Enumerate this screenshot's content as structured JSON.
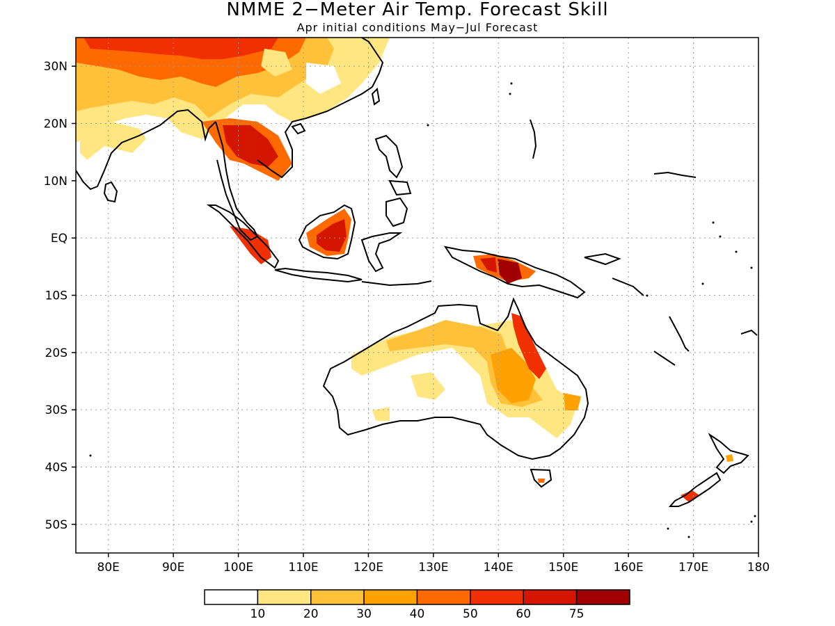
{
  "header": {
    "title": "NMME 2−Meter Air Temp. Forecast Skill",
    "subtitle": "Apr initial conditions  May−Jul Forecast"
  },
  "axes": {
    "lon_ticks": [
      "80E",
      "90E",
      "100E",
      "110E",
      "120E",
      "130E",
      "140E",
      "150E",
      "160E",
      "170E",
      "180"
    ],
    "lat_ticks": [
      "30N",
      "20N",
      "10N",
      "EQ",
      "10S",
      "20S",
      "30S",
      "40S",
      "50S"
    ]
  },
  "colorbar": {
    "labels": [
      "10",
      "20",
      "30",
      "40",
      "50",
      "60",
      "75"
    ],
    "colors": [
      "#ffffff",
      "#ffe680",
      "#ffc03a",
      "#ffa100",
      "#ff6a00",
      "#f03000",
      "#d41500",
      "#a00000"
    ]
  },
  "colors": {
    "coast": "#000000",
    "grid": "#9a9a9a"
  }
}
